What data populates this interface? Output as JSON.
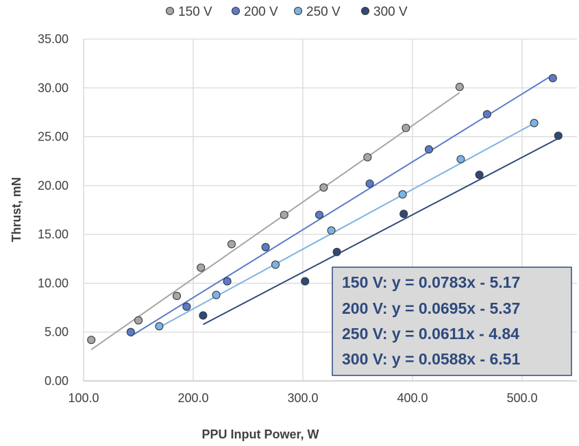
{
  "chart_data": {
    "type": "scatter",
    "xlabel": "PPU Input Power, W",
    "ylabel": "Thrust, mN",
    "xlim": [
      100,
      550
    ],
    "ylim": [
      0,
      35
    ],
    "x_ticks": [
      "100.0",
      "200.0",
      "300.0",
      "400.0",
      "500.0"
    ],
    "y_ticks": [
      "0.00",
      "5.00",
      "10.00",
      "15.00",
      "20.00",
      "25.00",
      "30.00",
      "35.00"
    ],
    "grid": true,
    "legend_position": "top",
    "series": [
      {
        "name": "150 V",
        "color": "#A6A6A6",
        "points": [
          [
            107,
            4.2
          ],
          [
            150,
            6.2
          ],
          [
            185,
            8.7
          ],
          [
            207,
            11.6
          ],
          [
            235,
            14.0
          ],
          [
            283,
            17.0
          ],
          [
            319,
            19.8
          ],
          [
            359,
            22.9
          ],
          [
            394,
            25.9
          ],
          [
            443,
            30.1
          ]
        ],
        "trendline": {
          "slope": 0.0783,
          "intercept": -5.17,
          "x_range": [
            107,
            443
          ]
        }
      },
      {
        "name": "200 V",
        "color": "#5B7BC9",
        "points": [
          [
            143,
            5.0
          ],
          [
            194,
            7.6
          ],
          [
            231,
            10.2
          ],
          [
            266,
            13.7
          ],
          [
            315,
            17.0
          ],
          [
            361,
            20.2
          ],
          [
            415,
            23.7
          ],
          [
            468,
            27.3
          ],
          [
            528,
            31.0
          ]
        ],
        "trendline": {
          "slope": 0.0695,
          "intercept": -5.37,
          "x_range": [
            143,
            528
          ]
        }
      },
      {
        "name": "250 V",
        "color": "#7BB3E3",
        "points": [
          [
            169,
            5.6
          ],
          [
            221,
            8.8
          ],
          [
            275,
            11.9
          ],
          [
            326,
            15.4
          ],
          [
            391,
            19.1
          ],
          [
            444,
            22.7
          ],
          [
            511,
            26.4
          ]
        ],
        "trendline": {
          "slope": 0.0611,
          "intercept": -4.84,
          "x_range": [
            169,
            511
          ]
        }
      },
      {
        "name": "300 V",
        "color": "#2F4A78",
        "points": [
          [
            209,
            6.7
          ],
          [
            302,
            10.2
          ],
          [
            331,
            13.2
          ],
          [
            392,
            17.1
          ],
          [
            461,
            21.1
          ],
          [
            533,
            25.1
          ]
        ],
        "trendline": {
          "slope": 0.0588,
          "intercept": -6.51,
          "x_range": [
            209,
            533
          ]
        }
      }
    ],
    "equations": [
      "150 V:  y = 0.0783x - 5.17",
      "200 V:  y = 0.0695x - 5.37",
      "250 V:  y = 0.0611x - 4.84",
      "300 V:  y = 0.0588x - 6.51"
    ]
  }
}
